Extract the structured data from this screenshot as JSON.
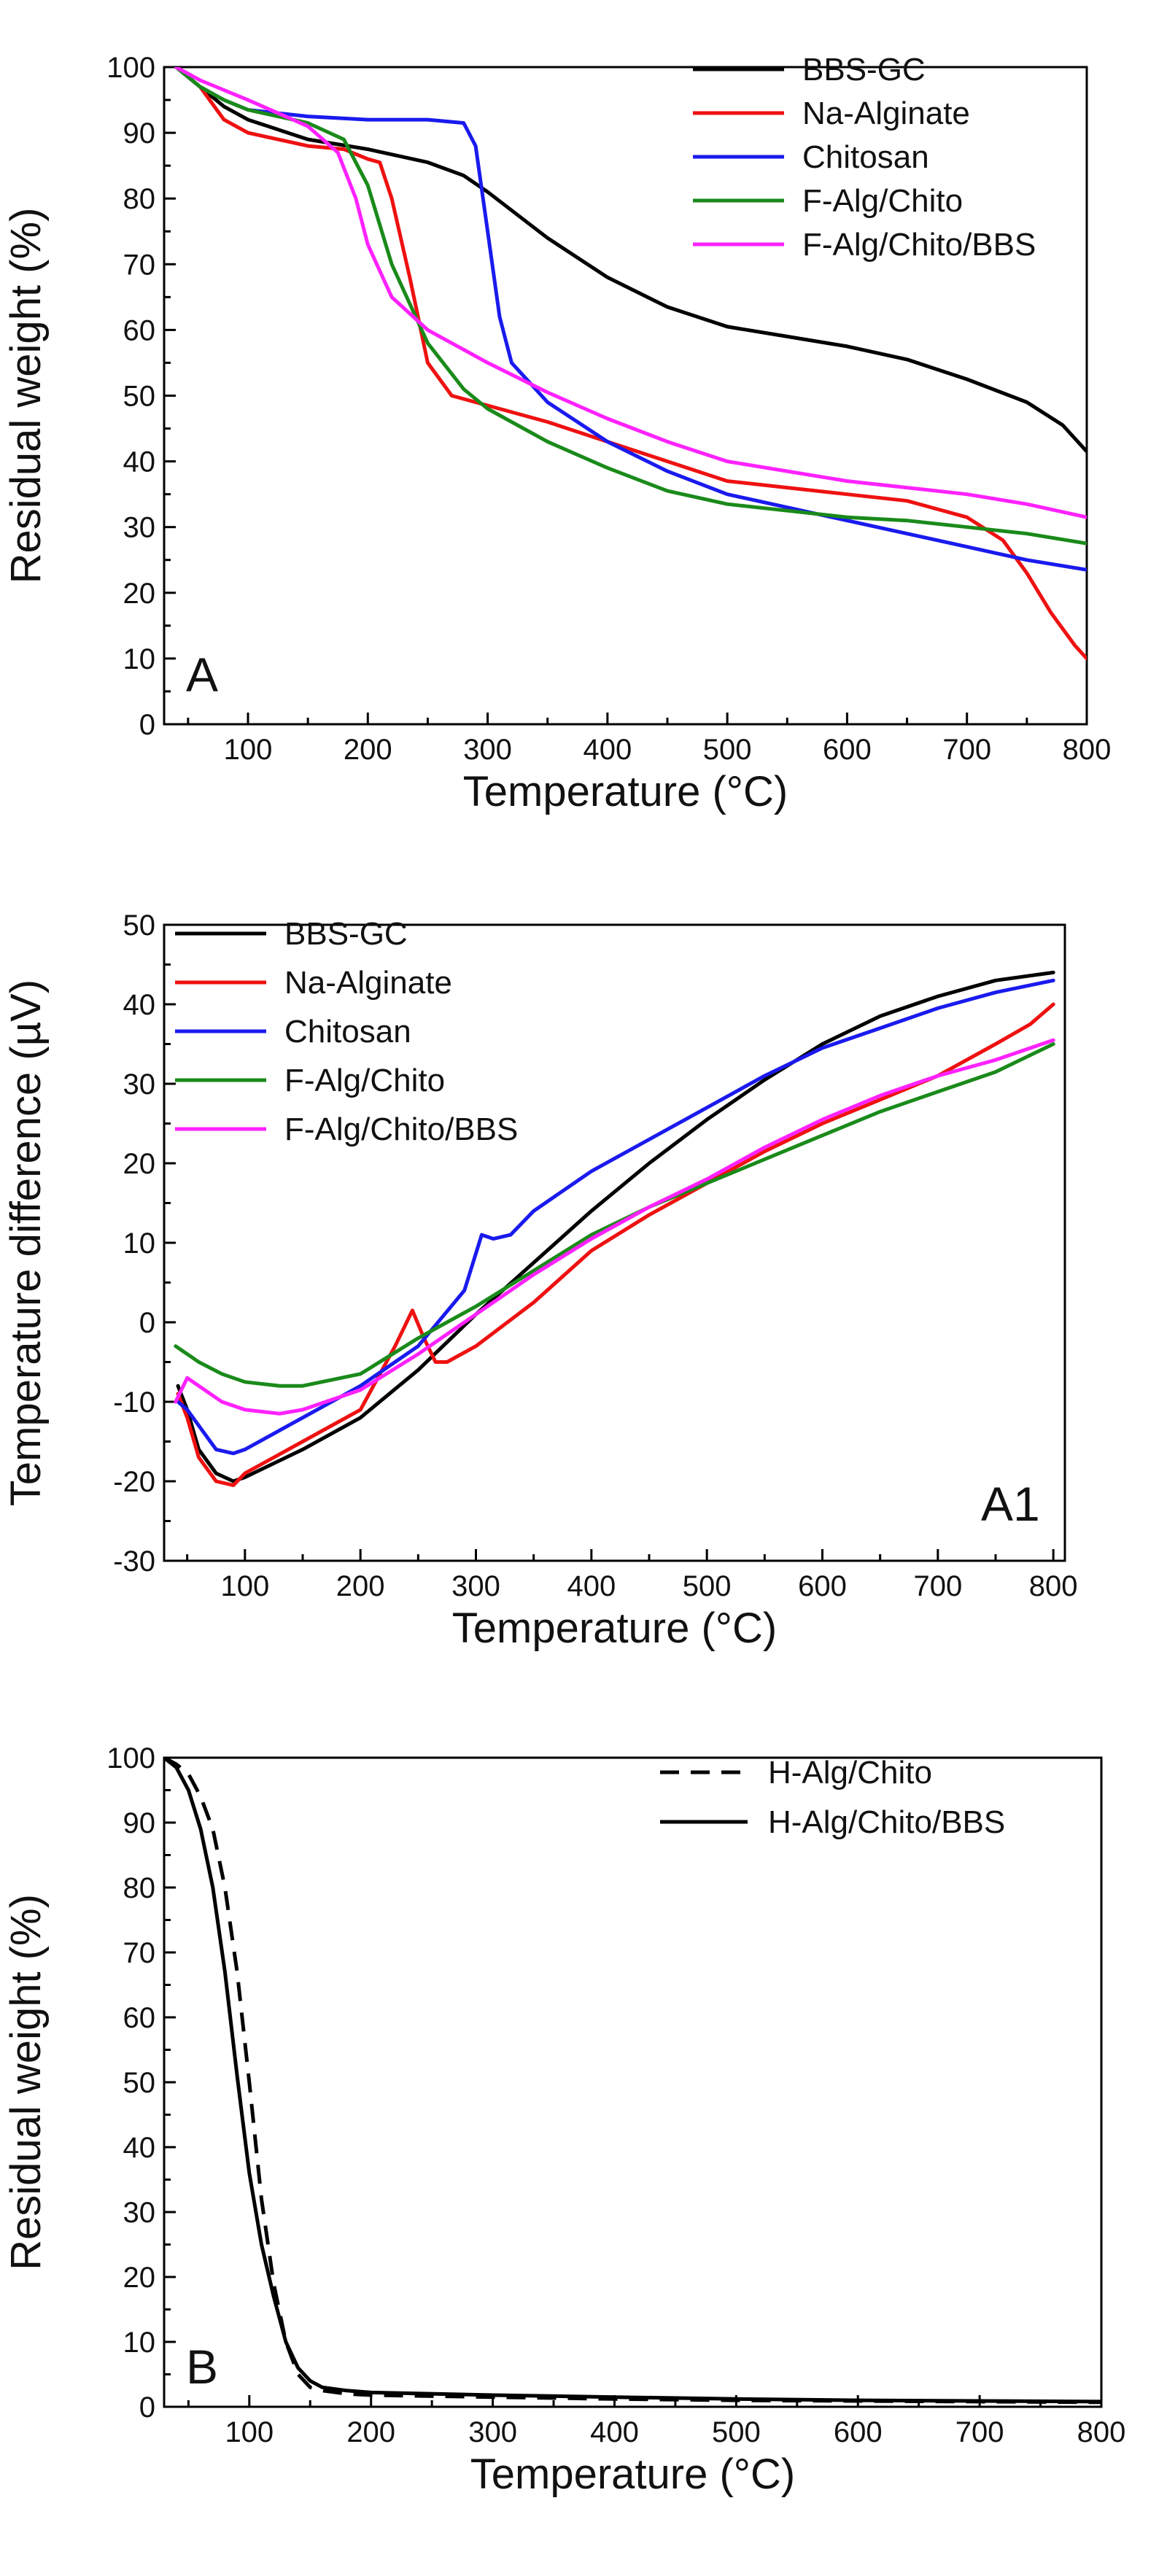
{
  "chart_data": [
    {
      "id": "A",
      "type": "line",
      "panel_label": "A",
      "xlabel": "Temperature (°C)",
      "ylabel": "Residual weight (%)",
      "xlim": [
        30,
        800
      ],
      "ylim": [
        0,
        100
      ],
      "xticks": [
        100,
        200,
        300,
        400,
        500,
        600,
        700,
        800
      ],
      "yticks": [
        0,
        10,
        20,
        30,
        40,
        50,
        60,
        70,
        80,
        90,
        100
      ],
      "legend_position": "top-right",
      "series": [
        {
          "name": "BBS-GC",
          "color": "#000000",
          "dash": "solid",
          "x": [
            40,
            60,
            80,
            100,
            150,
            200,
            250,
            280,
            300,
            350,
            400,
            450,
            500,
            550,
            600,
            650,
            700,
            750,
            780,
            800
          ],
          "y": [
            100,
            97,
            94,
            92,
            89,
            87.5,
            85.5,
            83.5,
            81,
            74,
            68,
            63.5,
            60.5,
            59,
            57.5,
            55.5,
            52.5,
            49,
            45.5,
            41.5
          ]
        },
        {
          "name": "Na-Alginate",
          "color": "#ee1111",
          "dash": "solid",
          "x": [
            40,
            60,
            80,
            100,
            150,
            180,
            200,
            210,
            220,
            235,
            250,
            270,
            300,
            350,
            400,
            450,
            500,
            550,
            600,
            650,
            700,
            730,
            750,
            770,
            790,
            800
          ],
          "y": [
            100,
            97,
            92,
            90,
            88,
            87.5,
            86,
            85.5,
            80,
            68,
            55,
            50,
            48.5,
            46,
            43,
            40,
            37,
            36,
            35,
            34,
            31.5,
            28,
            23,
            17,
            12,
            10
          ]
        },
        {
          "name": "Chitosan",
          "color": "#1a1aee",
          "dash": "solid",
          "x": [
            40,
            60,
            80,
            100,
            150,
            200,
            250,
            280,
            290,
            300,
            310,
            320,
            350,
            400,
            450,
            500,
            550,
            600,
            650,
            700,
            750,
            800
          ],
          "y": [
            100,
            97,
            95,
            93.5,
            92.5,
            92,
            92,
            91.5,
            88,
            75,
            62,
            55,
            49,
            43,
            38.5,
            35,
            33,
            31,
            29,
            27,
            25,
            23.5
          ]
        },
        {
          "name": "F-Alg/Chito",
          "color": "#1a8a1a",
          "dash": "solid",
          "x": [
            40,
            60,
            80,
            100,
            150,
            180,
            200,
            220,
            250,
            280,
            300,
            350,
            400,
            450,
            500,
            550,
            600,
            650,
            700,
            750,
            800
          ],
          "y": [
            100,
            97,
            95,
            93.5,
            91.5,
            89,
            82,
            70,
            58,
            51,
            48,
            43,
            39,
            35.5,
            33.5,
            32.5,
            31.5,
            31,
            30,
            29,
            27.5
          ]
        },
        {
          "name": "F-Alg/Chito/BBS",
          "color": "#ff22ff",
          "dash": "solid",
          "x": [
            40,
            60,
            80,
            100,
            150,
            175,
            190,
            200,
            220,
            250,
            300,
            350,
            400,
            450,
            500,
            550,
            600,
            650,
            700,
            750,
            800
          ],
          "y": [
            100,
            98,
            96.5,
            95,
            91,
            87,
            80,
            73,
            65,
            60,
            55,
            50.5,
            46.5,
            43,
            40,
            38.5,
            37,
            36,
            35,
            33.5,
            31.5
          ]
        }
      ]
    },
    {
      "id": "A1",
      "type": "line",
      "panel_label": "A1",
      "xlabel": "Temperature (°C)",
      "ylabel": "Temperature difference (µV)",
      "xlim": [
        30,
        810
      ],
      "ylim": [
        -30,
        50
      ],
      "xticks": [
        100,
        200,
        300,
        400,
        500,
        600,
        700,
        800
      ],
      "yticks": [
        -30,
        -20,
        -10,
        0,
        10,
        20,
        30,
        40,
        50
      ],
      "legend_position": "top-left",
      "series": [
        {
          "name": "BBS-GC",
          "color": "#000000",
          "dash": "solid",
          "x": [
            42,
            50,
            60,
            75,
            90,
            100,
            150,
            200,
            250,
            300,
            350,
            400,
            450,
            500,
            550,
            600,
            650,
            700,
            750,
            800
          ],
          "y": [
            -8,
            -11,
            -16,
            -19,
            -20,
            -19.5,
            -16,
            -12,
            -6,
            1,
            7.5,
            14,
            20,
            25.5,
            30.5,
            35,
            38.5,
            41,
            43,
            44
          ]
        },
        {
          "name": "Na-Alginate",
          "color": "#ee1111",
          "dash": "solid",
          "x": [
            42,
            50,
            60,
            75,
            90,
            100,
            150,
            200,
            230,
            245,
            255,
            265,
            275,
            300,
            350,
            400,
            450,
            500,
            550,
            600,
            650,
            700,
            750,
            780,
            800
          ],
          "y": [
            -9,
            -12,
            -17,
            -20,
            -20.5,
            -19,
            -15,
            -11,
            -3,
            1.5,
            -2,
            -5,
            -5,
            -3,
            2.5,
            9,
            13.5,
            17.5,
            21.5,
            25,
            28,
            31,
            35,
            37.5,
            40
          ]
        },
        {
          "name": "Chitosan",
          "color": "#1a1aee",
          "dash": "solid",
          "x": [
            42,
            50,
            60,
            75,
            90,
            100,
            150,
            200,
            250,
            290,
            305,
            315,
            330,
            350,
            400,
            450,
            500,
            550,
            600,
            650,
            700,
            750,
            800
          ],
          "y": [
            -10,
            -11,
            -13,
            -16,
            -16.5,
            -16,
            -12,
            -8,
            -3,
            4,
            11,
            10.5,
            11,
            14,
            19,
            23,
            27,
            31,
            34.5,
            37,
            39.5,
            41.5,
            43
          ]
        },
        {
          "name": "F-Alg/Chito",
          "color": "#1a8a1a",
          "dash": "solid",
          "x": [
            40,
            50,
            60,
            80,
            100,
            130,
            150,
            200,
            250,
            300,
            350,
            400,
            450,
            500,
            550,
            600,
            650,
            700,
            750,
            800
          ],
          "y": [
            -3,
            -4,
            -5,
            -6.5,
            -7.5,
            -8,
            -8,
            -6.5,
            -2,
            2,
            6.5,
            11,
            14.5,
            17.5,
            20.5,
            23.5,
            26.5,
            29,
            31.5,
            35
          ]
        },
        {
          "name": "F-Alg/Chito/BBS",
          "color": "#ff22ff",
          "dash": "solid",
          "x": [
            40,
            50,
            60,
            80,
            100,
            130,
            150,
            200,
            250,
            300,
            350,
            400,
            450,
            500,
            550,
            600,
            650,
            700,
            750,
            800
          ],
          "y": [
            -10,
            -7,
            -8,
            -10,
            -11,
            -11.5,
            -11,
            -8.5,
            -4,
            1,
            6,
            10.5,
            14.5,
            18,
            22,
            25.5,
            28.5,
            31,
            33,
            35.5
          ]
        }
      ]
    },
    {
      "id": "B",
      "type": "line",
      "panel_label": "B",
      "xlabel": "Temperature (°C)",
      "ylabel": "Residual weight (%)",
      "xlim": [
        30,
        800
      ],
      "ylim": [
        0,
        100
      ],
      "xticks": [
        100,
        200,
        300,
        400,
        500,
        600,
        700,
        800
      ],
      "yticks": [
        0,
        10,
        20,
        30,
        40,
        50,
        60,
        70,
        80,
        90,
        100
      ],
      "legend_position": "top-right",
      "series": [
        {
          "name": "H-Alg/Chito",
          "color": "#000000",
          "dash": "dashed",
          "x": [
            30,
            40,
            50,
            60,
            70,
            80,
            90,
            100,
            110,
            120,
            130,
            140,
            150,
            160,
            180,
            200,
            300,
            400,
            500,
            600,
            700,
            800
          ],
          "y": [
            100,
            99,
            97.5,
            94,
            89,
            80,
            67,
            50,
            32,
            19,
            10,
            5,
            3,
            2.5,
            2,
            1.8,
            1.5,
            1.2,
            1,
            0.9,
            0.8,
            0.7
          ]
        },
        {
          "name": "H-Alg/Chito/BBS",
          "color": "#000000",
          "dash": "solid",
          "x": [
            30,
            40,
            50,
            60,
            70,
            80,
            90,
            100,
            110,
            120,
            130,
            140,
            150,
            160,
            180,
            200,
            300,
            400,
            500,
            600,
            700,
            800
          ],
          "y": [
            100,
            98.5,
            95,
            89,
            80,
            67,
            51,
            36,
            25,
            17,
            10,
            6,
            4,
            3,
            2.5,
            2.2,
            1.8,
            1.5,
            1.2,
            1,
            0.9,
            0.8
          ]
        }
      ]
    }
  ]
}
